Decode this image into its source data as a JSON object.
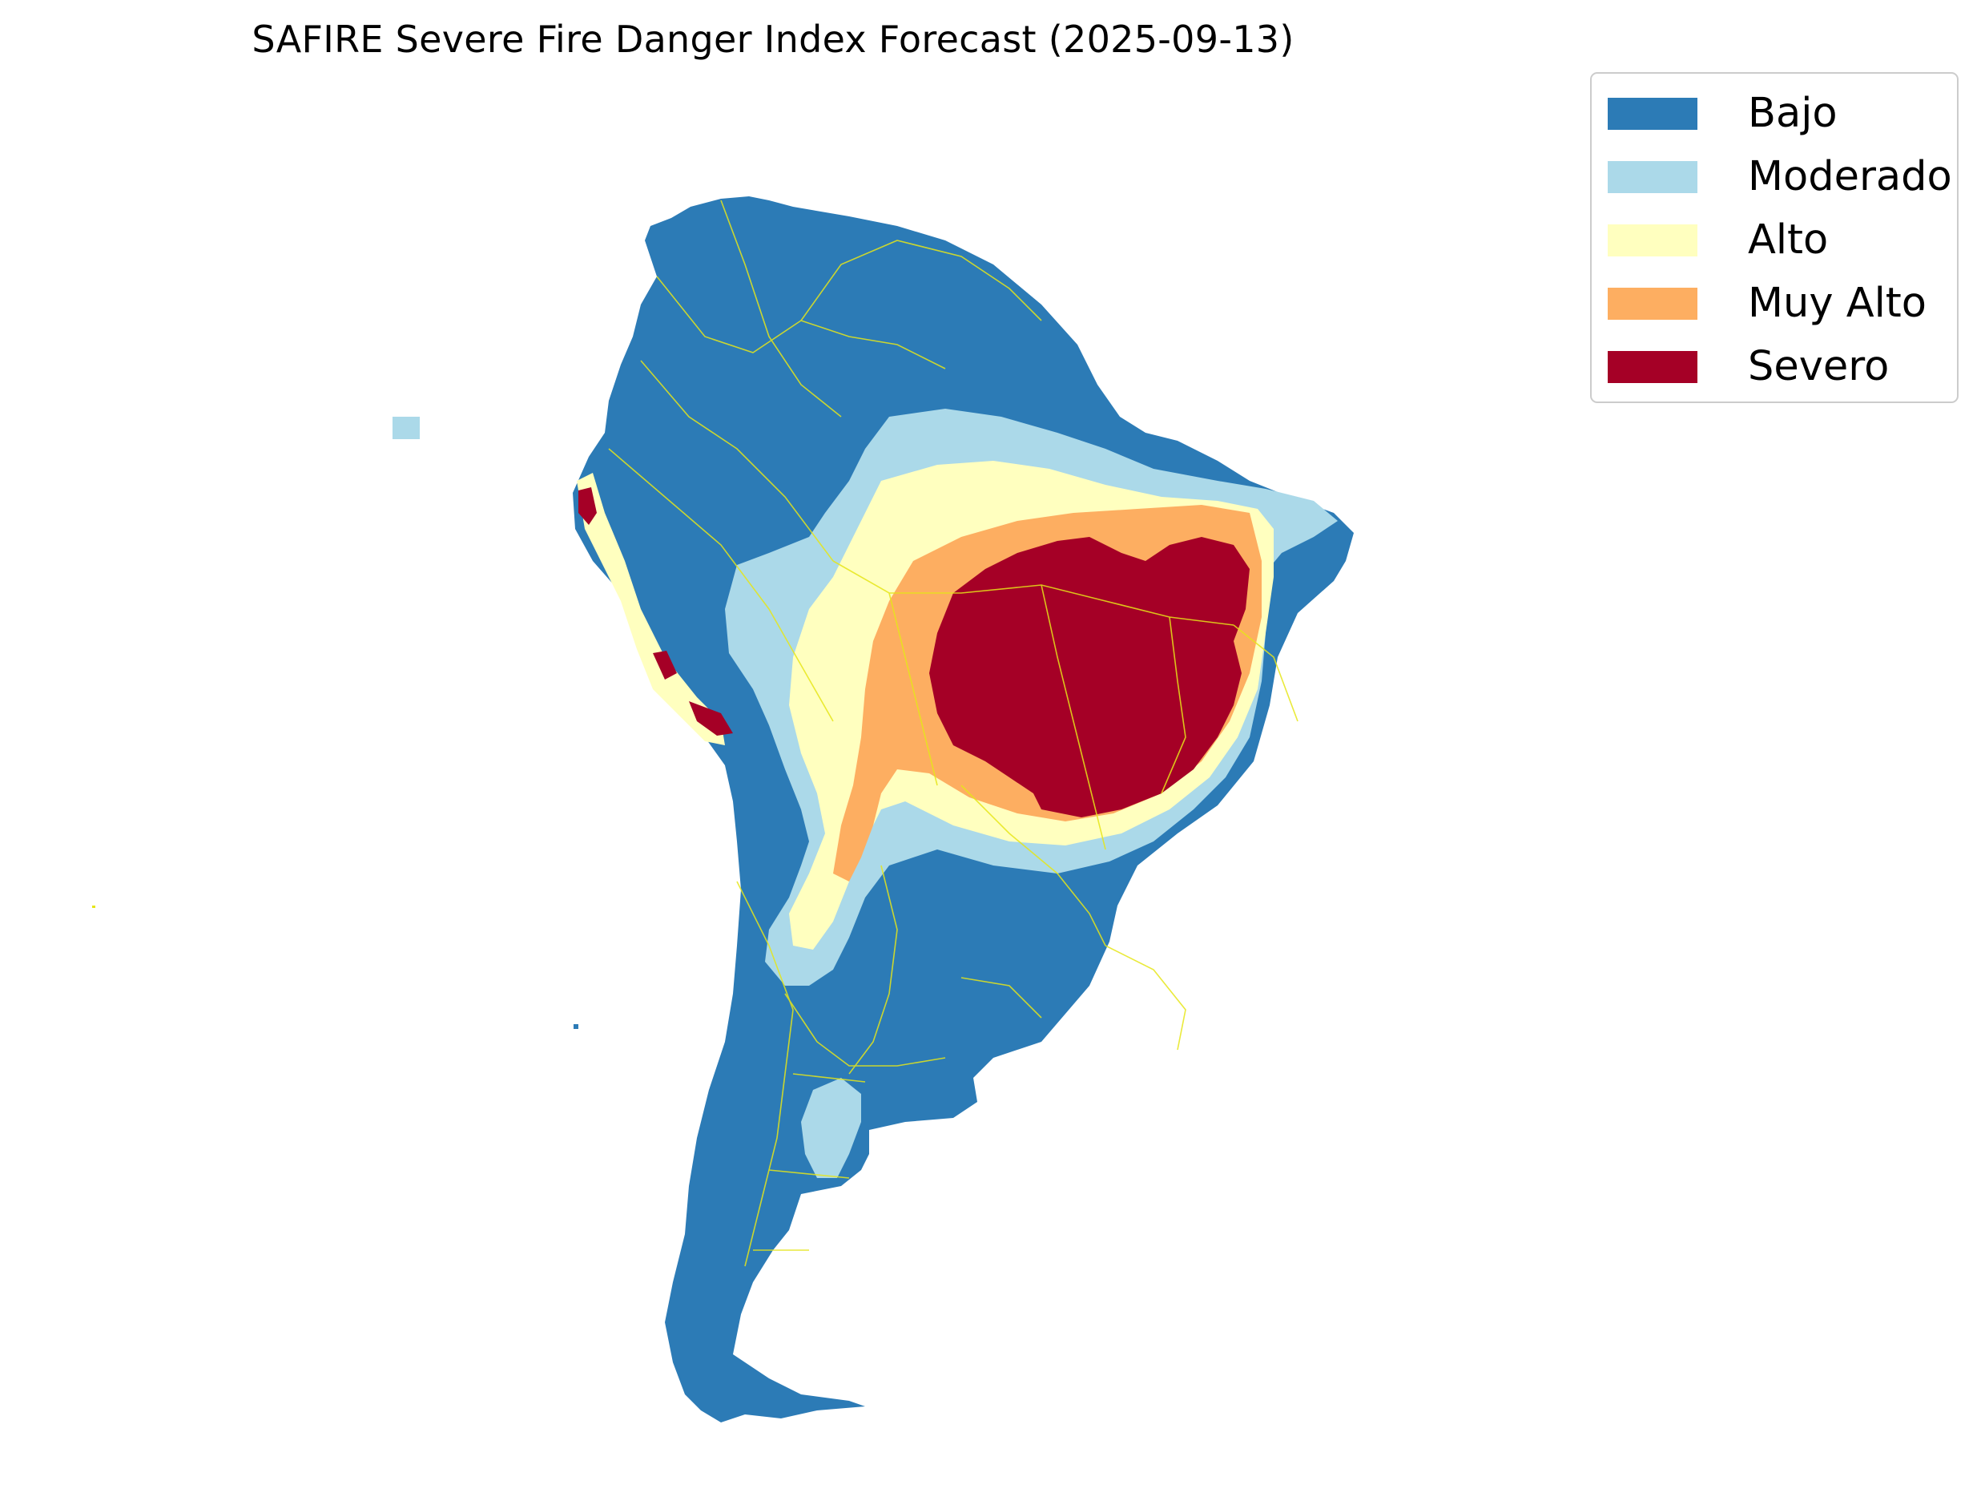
{
  "map": {
    "title": "SAFIRE Severe Fire Danger Index Forecast (2025-09-13)",
    "region": "South America",
    "border_color": "#e6e619"
  },
  "legend": {
    "items": [
      {
        "label": "Bajo",
        "color": "#2c7bb6"
      },
      {
        "label": "Moderado",
        "color": "#abd9e9"
      },
      {
        "label": "Alto",
        "color": "#ffffbf"
      },
      {
        "label": "Muy Alto",
        "color": "#fdae61"
      },
      {
        "label": "Severo",
        "color": "#a50026"
      }
    ]
  }
}
